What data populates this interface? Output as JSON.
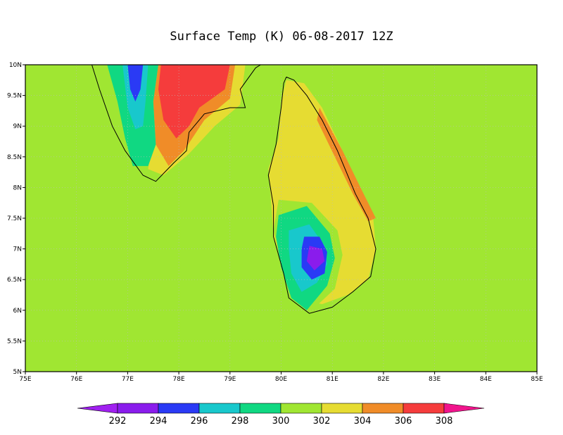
{
  "title": "Surface Temp (K) 06-08-2017 12Z",
  "map": {
    "lon_range": [
      75,
      85
    ],
    "lat_range": [
      5,
      10
    ],
    "x_ticks": [
      "75E",
      "76E",
      "77E",
      "78E",
      "79E",
      "80E",
      "81E",
      "82E",
      "83E",
      "84E",
      "85E"
    ],
    "y_ticks": [
      "5N",
      "5.5N",
      "6N",
      "6.5N",
      "7N",
      "7.5N",
      "8N",
      "8.5N",
      "9N",
      "9.5N",
      "10N"
    ],
    "grid": "dotted",
    "background_level": 301
  },
  "colorbar": {
    "levels": [
      "292",
      "294",
      "296",
      "298",
      "300",
      "302",
      "304",
      "306",
      "308"
    ],
    "colors": [
      "#a020f0",
      "#8a1cec",
      "#2a3af5",
      "#18c8cc",
      "#10d882",
      "#a0e632",
      "#e6dc32",
      "#f08c28",
      "#f53c3c",
      "#f0148c"
    ]
  },
  "colors": {
    "t301": "#a0e632",
    "t303": "#e6dc32",
    "t305": "#f08c28",
    "t307": "#f53c3c",
    "t299": "#10d882",
    "t297": "#18c8cc",
    "t295": "#2a3af5",
    "t293": "#8a1cec",
    "coast": "#000000"
  }
}
